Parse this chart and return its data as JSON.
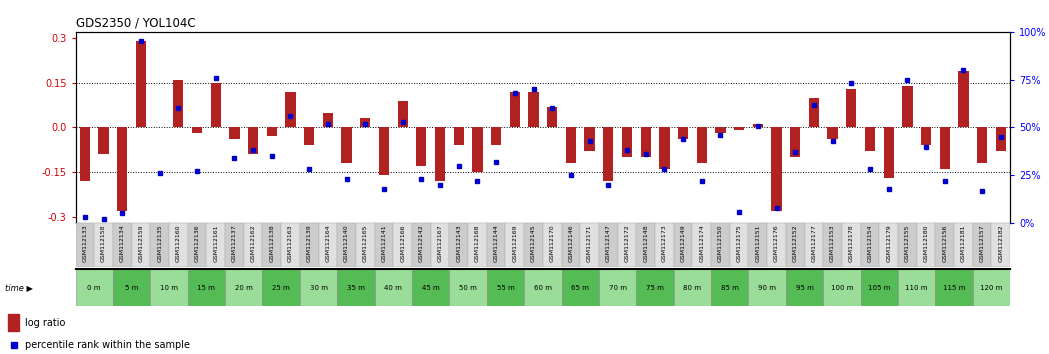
{
  "title": "GDS2350 / YOL104C",
  "xlabels": [
    "GSM112133",
    "GSM112158",
    "GSM112134",
    "GSM112159",
    "GSM112135",
    "GSM112160",
    "GSM112136",
    "GSM112161",
    "GSM112137",
    "GSM112162",
    "GSM112138",
    "GSM112163",
    "GSM112139",
    "GSM112164",
    "GSM112140",
    "GSM112165",
    "GSM112141",
    "GSM112166",
    "GSM112142",
    "GSM112167",
    "GSM112143",
    "GSM112168",
    "GSM112144",
    "GSM112169",
    "GSM112145",
    "GSM112170",
    "GSM112146",
    "GSM112171",
    "GSM112147",
    "GSM112172",
    "GSM112148",
    "GSM112173",
    "GSM112149",
    "GSM112174",
    "GSM112150",
    "GSM112175",
    "GSM112151",
    "GSM112176",
    "GSM112152",
    "GSM112177",
    "GSM112153",
    "GSM112178",
    "GSM112154",
    "GSM112179",
    "GSM112155",
    "GSM112180",
    "GSM112156",
    "GSM112181",
    "GSM112157",
    "GSM112182"
  ],
  "time_labels": [
    "0 m",
    "5 m",
    "10 m",
    "15 m",
    "20 m",
    "25 m",
    "30 m",
    "35 m",
    "40 m",
    "45 m",
    "50 m",
    "55 m",
    "60 m",
    "65 m",
    "70 m",
    "75 m",
    "80 m",
    "85 m",
    "90 m",
    "95 m",
    "100 m",
    "105 m",
    "110 m",
    "115 m",
    "120 m"
  ],
  "log_ratio": [
    -0.18,
    -0.09,
    -0.28,
    0.29,
    0.0,
    0.16,
    -0.02,
    0.15,
    -0.04,
    -0.09,
    -0.03,
    0.12,
    -0.06,
    0.05,
    -0.12,
    0.03,
    -0.16,
    0.09,
    -0.13,
    -0.18,
    -0.06,
    -0.15,
    -0.06,
    0.12,
    0.12,
    0.07,
    -0.12,
    -0.08,
    -0.18,
    -0.1,
    -0.1,
    -0.14,
    -0.04,
    -0.12,
    -0.02,
    -0.01,
    0.01,
    -0.28,
    -0.1,
    0.1,
    -0.04,
    0.13,
    -0.08,
    -0.17,
    0.14,
    -0.06,
    -0.14,
    0.19,
    -0.12,
    -0.08
  ],
  "percentile_rank": [
    3,
    2,
    5,
    95,
    26,
    60,
    27,
    76,
    34,
    38,
    35,
    56,
    28,
    52,
    23,
    52,
    18,
    53,
    23,
    20,
    30,
    22,
    32,
    68,
    70,
    60,
    25,
    43,
    20,
    38,
    36,
    28,
    44,
    22,
    46,
    6,
    51,
    8,
    37,
    62,
    43,
    73,
    28,
    18,
    75,
    40,
    22,
    80,
    17,
    45
  ],
  "bar_color": "#b22222",
  "dot_color": "#0000cc",
  "ylim_left": [
    -0.32,
    0.32
  ],
  "ylim_right": [
    0,
    100
  ],
  "yticks_left": [
    0.3,
    0.15,
    0.0,
    -0.15,
    -0.3
  ],
  "yticks_right": [
    100,
    75,
    50,
    25,
    0
  ],
  "hline_positions": [
    0.15,
    0.0,
    -0.15
  ],
  "time_color_even": "#99dd99",
  "time_color_odd": "#55bb55",
  "label_color_even": "#cccccc",
  "label_color_odd": "#e0e0e0"
}
